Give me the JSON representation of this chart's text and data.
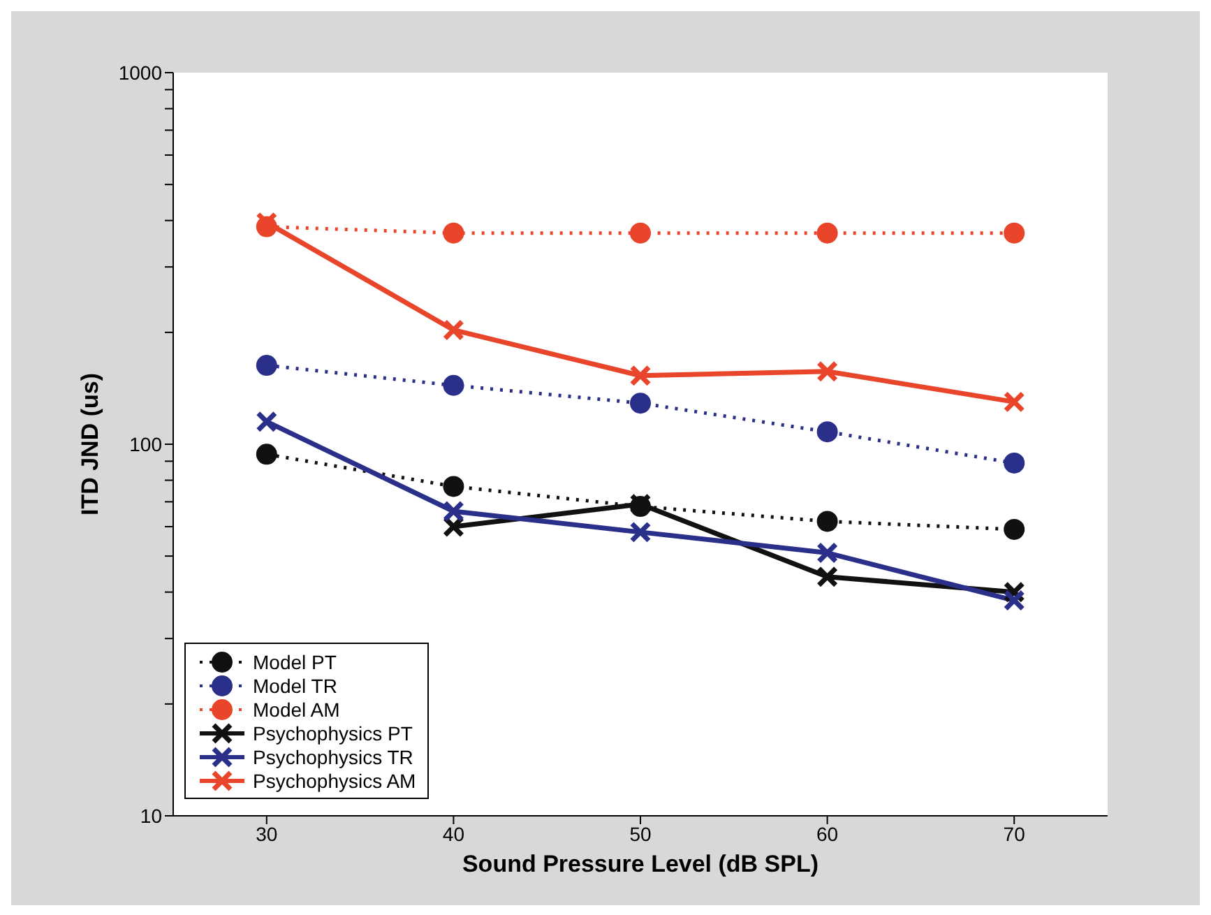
{
  "chart_data": {
    "type": "line",
    "xlabel": "Sound  Pressure  Level  (dB  SPL)",
    "ylabel": "ITD  JND  (us)",
    "x": [
      30,
      40,
      50,
      60,
      70
    ],
    "xlim": [
      25,
      75
    ],
    "xticks": [
      30,
      40,
      50,
      60,
      70
    ],
    "ylim": [
      10,
      1000
    ],
    "log": true,
    "yticks": [
      10,
      {
        "value": 20,
        "label": null
      },
      {
        "value": 30,
        "label": null
      },
      {
        "value": 40,
        "label": null
      },
      {
        "value": 50,
        "label": null
      },
      {
        "value": 60,
        "label": null
      },
      {
        "value": 70,
        "label": null
      },
      {
        "value": 80,
        "label": null
      },
      {
        "value": 90,
        "label": null
      },
      100,
      {
        "value": 200,
        "label": null
      },
      {
        "value": 300,
        "label": null
      },
      {
        "value": 400,
        "label": null
      },
      {
        "value": 500,
        "label": null
      },
      {
        "value": 600,
        "label": null
      },
      {
        "value": 700,
        "label": null
      },
      {
        "value": 800,
        "label": null
      },
      {
        "value": 900,
        "label": null
      },
      1000
    ],
    "grid": false,
    "legend": "bottom left",
    "series": [
      {
        "name": "Model PT",
        "color": "#111111",
        "marker": "circle",
        "line_style": "dotted",
        "values": [
          94,
          77,
          68,
          62,
          59
        ]
      },
      {
        "name": "Model TR",
        "color": "#2a2f8a",
        "marker": "circle",
        "line_style": "dotted",
        "values": [
          163,
          144,
          129,
          108,
          89
        ]
      },
      {
        "name": "Model AM",
        "color": "#e8452a",
        "marker": "circle",
        "line_style": "dotted",
        "values": [
          385,
          370,
          370,
          370,
          370
        ]
      },
      {
        "name": "Psychophysics PT",
        "color": "#111111",
        "marker": "cross",
        "line_style": "solid",
        "values": [
          null,
          60,
          69,
          44,
          40
        ]
      },
      {
        "name": "Psychophysics TR",
        "color": "#2a2f8a",
        "marker": "cross",
        "line_style": "solid",
        "values": [
          115,
          66,
          58,
          51,
          38
        ]
      },
      {
        "name": "Psychophysics AM",
        "color": "#e8452a",
        "marker": "cross",
        "line_style": "solid",
        "values": [
          395,
          203,
          153,
          157,
          130
        ]
      }
    ]
  }
}
